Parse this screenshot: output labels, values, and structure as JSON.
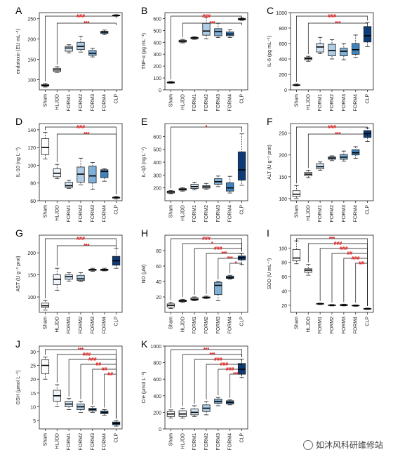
{
  "watermark": "如沐风科研维修站",
  "palette": [
    "#ffffff",
    "#eef4fa",
    "#d2e4f3",
    "#b0cde6",
    "#7fb0d8",
    "#3f84c0",
    "#0d3b79"
  ],
  "marker_color": "#e60000",
  "chart_data": [
    {
      "type": "box",
      "panel": "A",
      "ylabel": "endotoxin (EU mL⁻¹)",
      "ylim": [
        75,
        265
      ],
      "yticks": [
        100,
        150,
        200,
        250
      ],
      "categories": [
        "Sham",
        "HLJDD",
        "FORM1",
        "FORM2",
        "FORM3",
        "FORM4",
        "CLP"
      ],
      "boxes": [
        [
          82,
          84,
          86,
          88,
          91
        ],
        [
          118,
          120,
          124,
          128,
          132
        ],
        [
          166,
          170,
          178,
          182,
          186
        ],
        [
          168,
          174,
          182,
          192,
          207
        ],
        [
          156,
          160,
          165,
          172,
          177
        ],
        [
          211,
          214,
          217,
          219,
          222
        ],
        [
          256,
          257,
          258,
          259,
          260
        ]
      ],
      "brackets": [
        {
          "from": 0,
          "to": 6,
          "label": "###"
        },
        {
          "from": 1,
          "to": 6,
          "label": "***"
        }
      ]
    },
    {
      "type": "box",
      "panel": "B",
      "ylabel": "TNF-α (pg mL⁻¹)",
      "ylim": [
        0,
        650
      ],
      "yticks": [
        0,
        100,
        200,
        300,
        400,
        500,
        600
      ],
      "categories": [
        "Sham",
        "HLJDD",
        "FORM1",
        "FORM2",
        "FORM3",
        "FORM4",
        "CLP"
      ],
      "boxes": [
        [
          55,
          58,
          62,
          66,
          70
        ],
        [
          395,
          402,
          410,
          418,
          425
        ],
        [
          425,
          430,
          437,
          442,
          447
        ],
        [
          430,
          460,
          495,
          560,
          610
        ],
        [
          440,
          455,
          490,
          515,
          560
        ],
        [
          440,
          455,
          470,
          488,
          505
        ],
        [
          585,
          590,
          595,
          601,
          607
        ]
      ],
      "brackets": [
        {
          "from": 0,
          "to": 6,
          "label": "###"
        },
        {
          "from": 1,
          "to": 6,
          "label": "***"
        }
      ]
    },
    {
      "type": "box",
      "panel": "C",
      "ylabel": "IL-6 (pg mL⁻¹)",
      "ylim": [
        0,
        1000
      ],
      "yticks": [
        0,
        200,
        400,
        600,
        800,
        1000
      ],
      "categories": [
        "Sham",
        "HLJDD",
        "FORM1",
        "FORM2",
        "FORM3",
        "FORM4",
        "CLP"
      ],
      "boxes": [
        [
          50,
          58,
          62,
          66,
          75
        ],
        [
          370,
          390,
          405,
          420,
          435
        ],
        [
          470,
          490,
          555,
          600,
          680
        ],
        [
          400,
          440,
          510,
          590,
          650
        ],
        [
          390,
          440,
          500,
          540,
          600
        ],
        [
          420,
          460,
          520,
          600,
          710
        ],
        [
          560,
          620,
          700,
          820,
          870
        ]
      ],
      "brackets": [
        {
          "from": 0,
          "to": 6,
          "label": "###"
        },
        {
          "from": 1,
          "to": 6,
          "label": "***"
        }
      ]
    },
    {
      "type": "box",
      "panel": "D",
      "ylabel": "IL-10 (ng L⁻¹)",
      "ylim": [
        60,
        147
      ],
      "yticks": [
        60,
        80,
        100,
        120,
        140
      ],
      "categories": [
        "Sham",
        "HLJDD",
        "FORM1",
        "FORM2",
        "FORM3",
        "FORM4",
        "CLP"
      ],
      "boxes": [
        [
          107,
          112,
          120,
          130,
          137
        ],
        [
          85,
          87,
          91,
          96,
          101
        ],
        [
          74,
          75,
          77,
          81,
          83
        ],
        [
          78,
          81,
          90,
          98,
          108
        ],
        [
          73,
          80,
          88,
          99,
          103
        ],
        [
          82,
          86,
          93,
          95,
          96
        ],
        [
          62,
          63,
          63.5,
          64,
          65
        ]
      ],
      "brackets": [
        {
          "from": 0,
          "to": 6,
          "label": "###"
        },
        {
          "from": 1,
          "to": 6,
          "label": "***"
        }
      ]
    },
    {
      "type": "box",
      "panel": "E",
      "ylabel": "IL-1β (ng L⁻¹)",
      "ylim": [
        100,
        700
      ],
      "yticks": [
        200,
        300,
        400,
        500,
        600
      ],
      "categories": [
        "Sham",
        "HLJDD",
        "FORM1",
        "FORM2",
        "FORM3",
        "FORM4",
        "CLP"
      ],
      "boxes": [
        [
          155,
          160,
          168,
          175,
          180
        ],
        [
          175,
          182,
          188,
          195,
          202
        ],
        [
          185,
          195,
          210,
          228,
          245
        ],
        [
          190,
          198,
          208,
          218,
          235
        ],
        [
          210,
          228,
          248,
          272,
          292
        ],
        [
          160,
          175,
          200,
          240,
          290
        ],
        [
          220,
          260,
          340,
          480,
          620
        ]
      ],
      "brackets": [
        {
          "from": 0,
          "to": 6,
          "label": "*"
        }
      ]
    },
    {
      "type": "box",
      "panel": "F",
      "ylabel": "ALT (U g⁻¹ prot)",
      "ylim": [
        95,
        272
      ],
      "yticks": [
        100,
        150,
        200,
        250
      ],
      "categories": [
        "Sham",
        "HLJDD",
        "FORM1",
        "FORM2",
        "FORM3",
        "FORM4",
        "CLP"
      ],
      "boxes": [
        [
          100,
          105,
          110,
          118,
          130
        ],
        [
          148,
          152,
          156,
          160,
          165
        ],
        [
          165,
          168,
          173,
          180,
          184
        ],
        [
          187,
          190,
          193,
          196,
          198
        ],
        [
          186,
          190,
          195,
          201,
          209
        ],
        [
          192,
          200,
          205,
          212,
          219
        ],
        [
          231,
          240,
          249,
          256,
          262
        ]
      ],
      "brackets": [
        {
          "from": 0,
          "to": 6,
          "label": "###"
        },
        {
          "from": 1,
          "to": 6,
          "label": "***"
        }
      ]
    },
    {
      "type": "box",
      "panel": "G",
      "ylabel": "AST (U g⁻¹ prot)",
      "ylim": [
        65,
        240
      ],
      "yticks": [
        100,
        150,
        200
      ],
      "categories": [
        "Sham",
        "HLJDD",
        "FORM1",
        "FORM2",
        "FORM3",
        "FORM4",
        "CLP"
      ],
      "boxes": [
        [
          70,
          76,
          80,
          86,
          92
        ],
        [
          115,
          128,
          140,
          150,
          165
        ],
        [
          136,
          140,
          146,
          150,
          155
        ],
        [
          135,
          137,
          141,
          149,
          155
        ],
        [
          158,
          160,
          162,
          163,
          165
        ],
        [
          159,
          160,
          162,
          163,
          165
        ],
        [
          165,
          172,
          182,
          192,
          210
        ]
      ],
      "brackets": [
        {
          "from": 0,
          "to": 6,
          "label": "###"
        },
        {
          "from": 1,
          "to": 6,
          "label": "***"
        }
      ]
    },
    {
      "type": "box",
      "panel": "H",
      "ylabel": "NO (μM)",
      "ylim": [
        0,
        100
      ],
      "yticks": [
        20,
        40,
        60,
        80
      ],
      "categories": [
        "Sham",
        "HLJDD",
        "FORM1",
        "FORM2",
        "FORM3",
        "FORM4",
        "CLP"
      ],
      "boxes": [
        [
          5,
          7,
          9,
          11,
          13
        ],
        [
          13,
          14,
          15,
          16,
          17
        ],
        [
          15,
          16,
          17,
          19,
          20
        ],
        [
          18,
          18.5,
          19,
          20,
          21
        ],
        [
          15,
          23,
          35,
          39,
          40
        ],
        [
          43,
          44,
          45,
          47,
          48
        ],
        [
          62,
          68,
          71,
          73,
          76
        ]
      ],
      "brackets": [
        {
          "from": 0,
          "to": 6,
          "label": "###"
        },
        {
          "from": 1,
          "to": 6,
          "label": "*"
        },
        {
          "from": 2,
          "to": 6,
          "label": "###"
        },
        {
          "from": 3,
          "to": 6,
          "label": "***"
        },
        {
          "from": 4,
          "to": 6,
          "label": "***"
        },
        {
          "from": 5,
          "to": 6,
          "label": "*"
        }
      ]
    },
    {
      "type": "box",
      "panel": "I",
      "ylabel": "SOD (U mL⁻¹)",
      "ylim": [
        10,
        118
      ],
      "yticks": [
        20,
        40,
        60,
        80,
        100
      ],
      "categories": [
        "Sham",
        "HLJDD",
        "FORM1",
        "FORM2",
        "FORM3",
        "FORM4",
        "CLP"
      ],
      "boxes": [
        [
          78,
          82,
          86,
          98,
          110
        ],
        [
          62,
          66,
          69,
          71,
          77
        ],
        [
          21,
          21.5,
          22,
          22.5,
          23
        ],
        [
          19,
          19.5,
          20,
          20.5,
          21
        ],
        [
          19,
          19.5,
          20,
          21,
          21.5
        ],
        [
          18.5,
          19,
          19.5,
          20,
          20.5
        ],
        [
          14,
          14.5,
          15,
          15.5,
          16
        ]
      ],
      "brackets": [
        {
          "from": 0,
          "to": 6,
          "label": "***"
        },
        {
          "from": 1,
          "to": 6,
          "label": "###"
        },
        {
          "from": 2,
          "to": 6,
          "label": "###"
        },
        {
          "from": 3,
          "to": 6,
          "label": "##"
        },
        {
          "from": 4,
          "to": 6,
          "label": "###"
        },
        {
          "from": 5,
          "to": 6,
          "label": "##"
        }
      ]
    },
    {
      "type": "box",
      "panel": "J",
      "ylabel": "GSH (μmol L⁻¹)",
      "ylim": [
        2,
        32
      ],
      "yticks": [
        5,
        10,
        15,
        20,
        25,
        30
      ],
      "categories": [
        "Sham",
        "HLJDD",
        "FORM1",
        "FORM2",
        "FORM3",
        "FORM4",
        "CLP"
      ],
      "boxes": [
        [
          20,
          22,
          25,
          27,
          28
        ],
        [
          10,
          12,
          14,
          16,
          18
        ],
        [
          9,
          10,
          11,
          12,
          13
        ],
        [
          8,
          9,
          10,
          11,
          12
        ],
        [
          8,
          8.5,
          9,
          9.5,
          10
        ],
        [
          7,
          7.5,
          8,
          8.5,
          9
        ],
        [
          3,
          3.5,
          4,
          4.5,
          5
        ]
      ],
      "brackets": [
        {
          "from": 0,
          "to": 6,
          "label": "***"
        },
        {
          "from": 1,
          "to": 6,
          "label": "###"
        },
        {
          "from": 2,
          "to": 6,
          "label": "###"
        },
        {
          "from": 3,
          "to": 6,
          "label": "##"
        },
        {
          "from": 4,
          "to": 6,
          "label": "##"
        },
        {
          "from": 5,
          "to": 6,
          "label": "##"
        }
      ]
    },
    {
      "type": "box",
      "panel": "K",
      "ylabel": "Cre (μmol L⁻¹)",
      "ylim": [
        0,
        1000
      ],
      "yticks": [
        0,
        200,
        400,
        600,
        800,
        1000
      ],
      "categories": [
        "Sham",
        "HLJDD",
        "FORM1",
        "FORM2",
        "FORM3",
        "FORM4",
        "CLP"
      ],
      "boxes": [
        [
          130,
          150,
          180,
          210,
          230
        ],
        [
          130,
          150,
          180,
          220,
          250
        ],
        [
          150,
          170,
          200,
          240,
          280
        ],
        [
          170,
          210,
          250,
          290,
          330
        ],
        [
          280,
          310,
          330,
          360,
          380
        ],
        [
          290,
          300,
          320,
          340,
          350
        ],
        [
          620,
          660,
          720,
          790,
          840
        ]
      ],
      "brackets": [
        {
          "from": 0,
          "to": 6,
          "label": "***"
        },
        {
          "from": 1,
          "to": 6,
          "label": "***"
        },
        {
          "from": 2,
          "to": 6,
          "label": "###"
        },
        {
          "from": 3,
          "to": 6,
          "label": "###"
        },
        {
          "from": 4,
          "to": 6,
          "label": "###"
        },
        {
          "from": 5,
          "to": 6,
          "label": "***"
        }
      ]
    }
  ]
}
